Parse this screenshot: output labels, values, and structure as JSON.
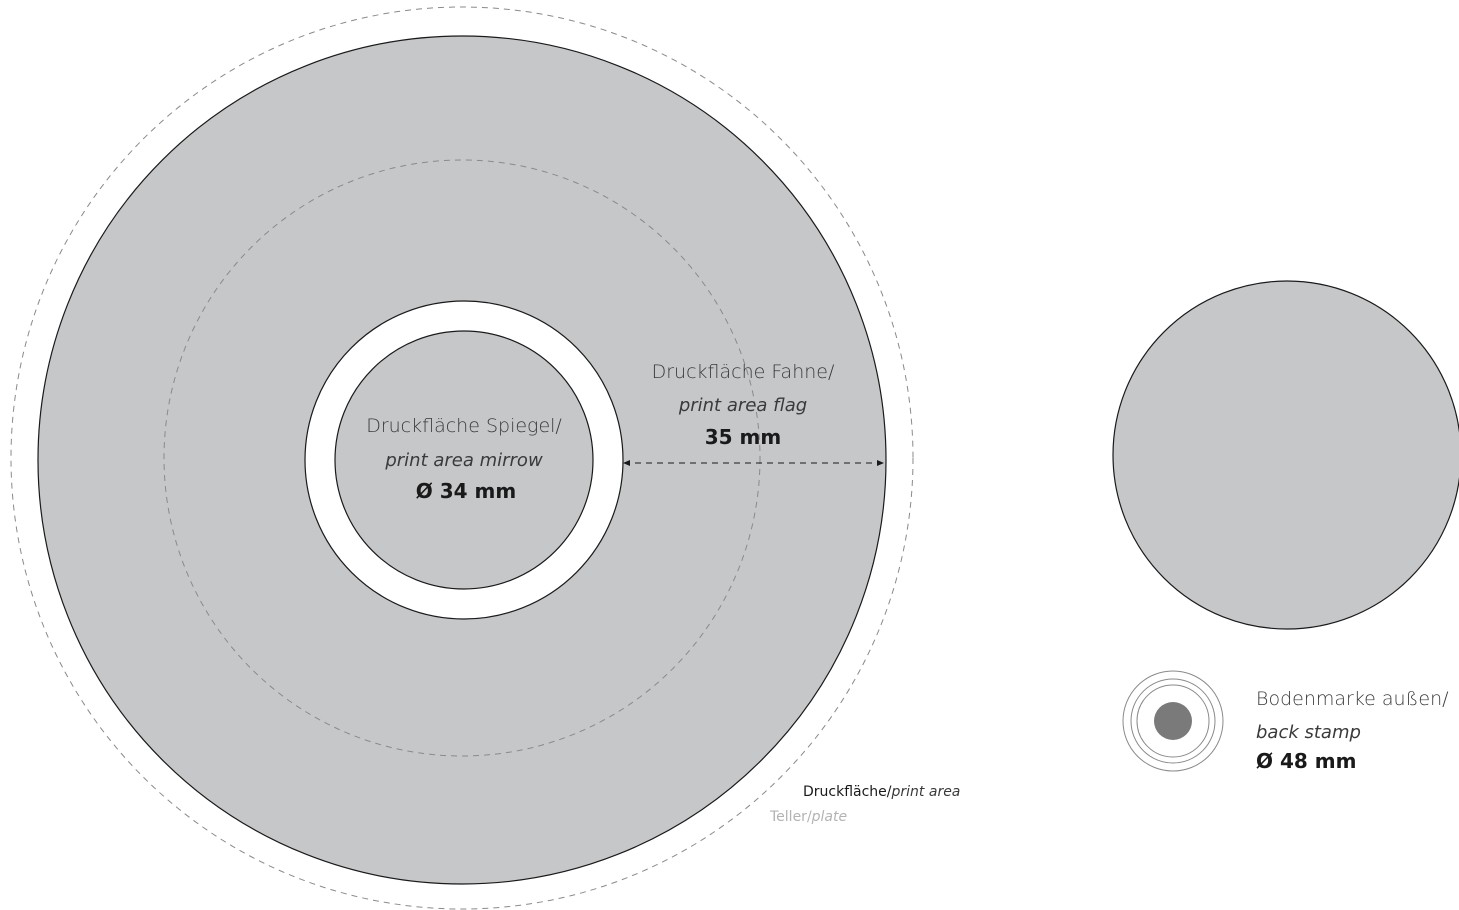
{
  "colors": {
    "print_fill": "#c6c7c9",
    "stroke": "#1a1a1a",
    "dashed": "#8a8a8a",
    "stamp_dot": "#7a7a7a",
    "plate_label": "#b3b3b3",
    "background": "#ffffff"
  },
  "plate": {
    "mirror": {
      "title": "Druckfläche Spiegel/",
      "subtitle": "print area mirrow",
      "size": "Ø 34 mm"
    },
    "flag": {
      "title": "Druckfläche Fahne/",
      "subtitle": "print area flag",
      "size": "35 mm"
    },
    "legend": {
      "print_area_de": "Druckfläche",
      "print_area_sep": "/",
      "print_area_en": "print area",
      "plate_de": "Teller",
      "plate_sep": "/",
      "plate_en": "plate"
    }
  },
  "back_stamp": {
    "title": "Bodenmarke außen/",
    "subtitle": "back stamp",
    "size": "Ø 48 mm"
  }
}
